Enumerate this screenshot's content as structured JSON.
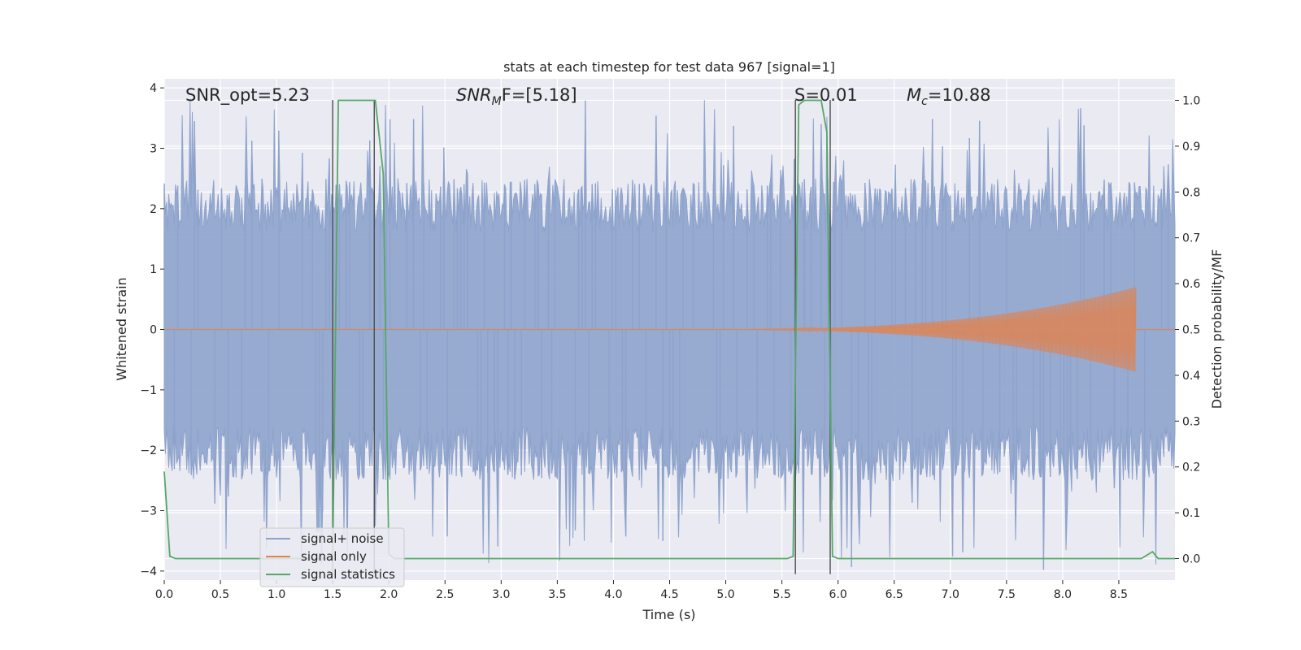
{
  "chart_data": {
    "type": "line",
    "title": "stats at each timestep for test data 967 [signal=1]",
    "xlabel": "Time (s)",
    "ylabel_left": "Whitened strain",
    "ylabel_right": "Detection probability/MF",
    "xlim": [
      0.0,
      9.0
    ],
    "ylim_left": [
      -4.15,
      4.15
    ],
    "ylim_right": [
      -0.047,
      1.047
    ],
    "x_ticks": [
      "0.0",
      "0.5",
      "1.0",
      "1.5",
      "2.0",
      "2.5",
      "3.0",
      "3.5",
      "4.0",
      "4.5",
      "5.0",
      "5.5",
      "6.0",
      "6.5",
      "7.0",
      "7.5",
      "8.0",
      "8.5"
    ],
    "x_tick_values": [
      0.0,
      0.5,
      1.0,
      1.5,
      2.0,
      2.5,
      3.0,
      3.5,
      4.0,
      4.5,
      5.0,
      5.5,
      6.0,
      6.5,
      7.0,
      7.5,
      8.0,
      8.5
    ],
    "y_left_ticks": [
      "−4",
      "−3",
      "−2",
      "−1",
      "0",
      "1",
      "2",
      "3",
      "4"
    ],
    "y_left_tick_values": [
      -4,
      -3,
      -2,
      -1,
      0,
      1,
      2,
      3,
      4
    ],
    "y_right_ticks": [
      "0.0",
      "0.1",
      "0.2",
      "0.3",
      "0.4",
      "0.5",
      "0.6",
      "0.7",
      "0.8",
      "0.9",
      "1.0"
    ],
    "y_right_tick_values": [
      0.0,
      0.1,
      0.2,
      0.3,
      0.4,
      0.5,
      0.6,
      0.7,
      0.8,
      0.9,
      1.0
    ],
    "grid": true,
    "legend_position": "lower-left",
    "annotations": {
      "snr_opt": "SNR_opt=5.23",
      "snr_mf_base": "SNR",
      "snr_mf_sub": "M",
      "snr_mf_rest": "F=[5.18]",
      "s_stat": "S=0.01",
      "mc_base": "M",
      "mc_sub": "c",
      "mc_rest": "=10.88"
    },
    "series": [
      {
        "name": "signal+ noise",
        "color": "#8ea3cc",
        "envelope": {
          "x_range": [
            0.0,
            9.0
          ],
          "y_typical": [
            -1.6,
            1.6
          ],
          "y_peak": [
            -4.0,
            3.8
          ]
        }
      },
      {
        "name": "signal only",
        "color": "#dd8452",
        "chirp": {
          "start_s": 4.5,
          "peak_s": 8.65,
          "peak_amplitude": 0.7
        }
      },
      {
        "name": "signal statistics",
        "color": "#55a868",
        "x": [
          0.0,
          0.05,
          0.1,
          0.15,
          0.5,
          1.0,
          1.45,
          1.5,
          1.55,
          1.6,
          1.7,
          1.8,
          1.88,
          1.95,
          2.0,
          2.05,
          2.5,
          3.0,
          4.0,
          5.0,
          5.5,
          5.55,
          5.6,
          5.65,
          5.7,
          5.75,
          5.8,
          5.85,
          5.9,
          5.95,
          6.0,
          6.05,
          7.0,
          8.0,
          8.7,
          8.8,
          8.85,
          8.9,
          9.0
        ],
        "y": [
          0.19,
          0.005,
          0.0,
          0.0,
          0.0,
          0.0,
          0.0,
          0.0,
          1.0,
          1.0,
          1.0,
          1.0,
          1.0,
          0.84,
          0.01,
          0.0,
          0.0,
          0.0,
          0.0,
          0.0,
          0.0,
          0.0,
          0.005,
          0.99,
          1.0,
          1.0,
          1.0,
          1.0,
          0.93,
          0.005,
          0.0,
          0.0,
          0.0,
          0.0,
          0.0,
          0.015,
          0.0,
          0.0,
          0.0
        ]
      }
    ],
    "markers": [
      {
        "x": 1.5,
        "y_range": [
          -4.05,
          3.8
        ]
      },
      {
        "x": 1.87,
        "y_range": [
          -4.05,
          3.8
        ]
      },
      {
        "x": 5.62,
        "y_range": [
          -4.05,
          3.8
        ]
      },
      {
        "x": 5.93,
        "y_range": [
          -4.05,
          3.8
        ]
      }
    ],
    "colors": {
      "plot_background": "#eaeaf2",
      "grid": "#ffffff",
      "marker_line": "#4d4d4d"
    }
  }
}
